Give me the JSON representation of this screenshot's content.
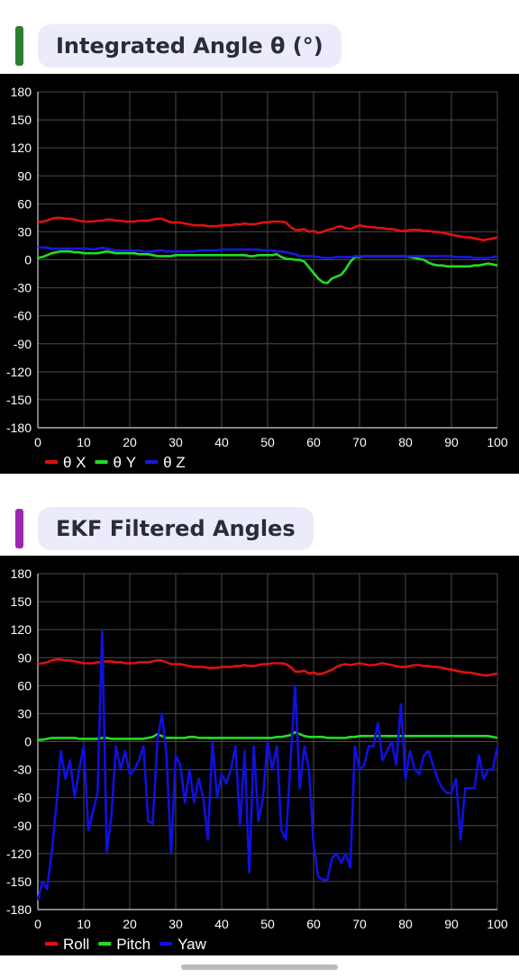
{
  "sections": [
    {
      "title": "Integrated Angle θ (°)",
      "accent_color": "#2e7d32"
    },
    {
      "title": "EKF Filtered Angles",
      "accent_color": "#9c27b0"
    }
  ],
  "chart_data": [
    {
      "type": "line",
      "title": "Integrated Angle θ (°)",
      "xlim": [
        0,
        100
      ],
      "ylim": [
        -180,
        180
      ],
      "xticks": [
        0,
        10,
        20,
        30,
        40,
        50,
        60,
        70,
        80,
        90,
        100
      ],
      "yticks": [
        180,
        150,
        120,
        90,
        60,
        30,
        0,
        -30,
        -60,
        -90,
        -120,
        -150,
        -180
      ],
      "grid": true,
      "legend_position": "bottom-left",
      "x": [
        0,
        1,
        2,
        3,
        4,
        5,
        6,
        7,
        8,
        9,
        10,
        11,
        12,
        13,
        14,
        15,
        16,
        17,
        18,
        19,
        20,
        21,
        22,
        23,
        24,
        25,
        26,
        27,
        28,
        29,
        30,
        31,
        32,
        33,
        34,
        35,
        36,
        37,
        38,
        39,
        40,
        41,
        42,
        43,
        44,
        45,
        46,
        47,
        48,
        49,
        50,
        51,
        52,
        53,
        54,
        55,
        56,
        57,
        58,
        59,
        60,
        61,
        62,
        63,
        64,
        65,
        66,
        67,
        68,
        69,
        70,
        71,
        72,
        73,
        74,
        75,
        76,
        77,
        78,
        79,
        80,
        81,
        82,
        83,
        84,
        85,
        86,
        87,
        88,
        89,
        90,
        91,
        92,
        93,
        94,
        95,
        96,
        97,
        98,
        99,
        100
      ],
      "series": [
        {
          "name": "θ X",
          "color": "#e01010",
          "values": [
            40,
            41,
            42,
            44,
            45,
            45,
            44,
            44,
            43,
            42,
            41,
            41,
            41,
            42,
            42,
            43,
            43,
            42,
            42,
            41,
            41,
            41,
            42,
            42,
            42,
            43,
            44,
            44,
            42,
            40,
            40,
            40,
            39,
            38,
            37,
            37,
            37,
            36,
            36,
            36,
            37,
            37,
            37,
            38,
            38,
            39,
            38,
            38,
            39,
            40,
            40,
            41,
            41,
            41,
            40,
            35,
            32,
            32,
            33,
            30,
            31,
            29,
            30,
            32,
            33,
            35,
            36,
            34,
            33,
            35,
            37,
            36,
            35,
            35,
            34,
            34,
            33,
            33,
            32,
            31,
            31,
            32,
            32,
            32,
            31,
            31,
            30,
            30,
            29,
            28,
            27,
            26,
            25,
            24,
            24,
            23,
            22,
            21,
            22,
            23,
            24
          ]
        },
        {
          "name": "θ Y",
          "color": "#22dd22",
          "values": [
            2,
            3,
            5,
            7,
            8,
            9,
            9,
            9,
            8,
            8,
            7,
            7,
            7,
            7,
            8,
            9,
            8,
            7,
            7,
            7,
            7,
            7,
            6,
            6,
            6,
            5,
            4,
            4,
            4,
            4,
            5,
            5,
            5,
            5,
            5,
            5,
            5,
            5,
            5,
            5,
            5,
            5,
            5,
            5,
            5,
            5,
            4,
            4,
            5,
            5,
            5,
            5,
            6,
            3,
            1,
            1,
            0,
            0,
            -2,
            -8,
            -14,
            -20,
            -24,
            -25,
            -20,
            -18,
            -16,
            -10,
            -2,
            3,
            3,
            4,
            4,
            4,
            4,
            4,
            4,
            4,
            4,
            4,
            4,
            3,
            2,
            1,
            0,
            -3,
            -5,
            -6,
            -6,
            -7,
            -7,
            -7,
            -7,
            -7,
            -7,
            -6,
            -6,
            -5,
            -4,
            -5,
            -6
          ]
        },
        {
          "name": "θ Z",
          "color": "#1818e0",
          "values": [
            14,
            13,
            13,
            12,
            12,
            12,
            12,
            12,
            12,
            12,
            12,
            12,
            11,
            12,
            13,
            12,
            11,
            10,
            10,
            10,
            10,
            10,
            10,
            9,
            9,
            9,
            10,
            10,
            9,
            9,
            9,
            9,
            9,
            9,
            9,
            10,
            10,
            10,
            10,
            10,
            11,
            11,
            11,
            11,
            11,
            11,
            11,
            11,
            11,
            10,
            10,
            10,
            9,
            9,
            8,
            7,
            6,
            4,
            4,
            4,
            4,
            3,
            2,
            2,
            2,
            3,
            3,
            3,
            3,
            4,
            4,
            4,
            4,
            4,
            4,
            4,
            4,
            4,
            4,
            4,
            4,
            4,
            4,
            4,
            4,
            4,
            4,
            4,
            4,
            4,
            4,
            3,
            3,
            3,
            3,
            2,
            2,
            2,
            2,
            3,
            4
          ]
        }
      ]
    },
    {
      "type": "line",
      "title": "EKF Filtered Angles",
      "xlim": [
        0,
        100
      ],
      "ylim": [
        -180,
        180
      ],
      "xticks": [
        0,
        10,
        20,
        30,
        40,
        50,
        60,
        70,
        80,
        90,
        100
      ],
      "yticks": [
        180,
        150,
        120,
        90,
        60,
        30,
        0,
        -30,
        -60,
        -90,
        -120,
        -150,
        -180
      ],
      "grid": true,
      "legend_position": "bottom-left",
      "x": [
        0,
        1,
        2,
        3,
        4,
        5,
        6,
        7,
        8,
        9,
        10,
        11,
        12,
        13,
        14,
        15,
        16,
        17,
        18,
        19,
        20,
        21,
        22,
        23,
        24,
        25,
        26,
        27,
        28,
        29,
        30,
        31,
        32,
        33,
        34,
        35,
        36,
        37,
        38,
        39,
        40,
        41,
        42,
        43,
        44,
        45,
        46,
        47,
        48,
        49,
        50,
        51,
        52,
        53,
        54,
        55,
        56,
        57,
        58,
        59,
        60,
        61,
        62,
        63,
        64,
        65,
        66,
        67,
        68,
        69,
        70,
        71,
        72,
        73,
        74,
        75,
        76,
        77,
        78,
        79,
        80,
        81,
        82,
        83,
        84,
        85,
        86,
        87,
        88,
        89,
        90,
        91,
        92,
        93,
        94,
        95,
        96,
        97,
        98,
        99,
        100
      ],
      "series": [
        {
          "name": "Roll",
          "color": "#e01010",
          "values": [
            83,
            84,
            85,
            87,
            88,
            88,
            87,
            87,
            86,
            85,
            84,
            84,
            84,
            85,
            85,
            86,
            86,
            85,
            85,
            84,
            84,
            84,
            85,
            85,
            85,
            86,
            87,
            87,
            85,
            83,
            83,
            83,
            82,
            81,
            80,
            80,
            80,
            79,
            79,
            79,
            80,
            80,
            80,
            81,
            81,
            82,
            81,
            81,
            82,
            83,
            83,
            84,
            84,
            84,
            83,
            80,
            75,
            75,
            76,
            73,
            74,
            72,
            73,
            75,
            77,
            80,
            82,
            83,
            82,
            83,
            84,
            83,
            82,
            82,
            83,
            84,
            83,
            82,
            81,
            80,
            80,
            81,
            82,
            82,
            81,
            81,
            80,
            80,
            79,
            78,
            77,
            76,
            75,
            74,
            74,
            73,
            72,
            71,
            71,
            72,
            73
          ]
        },
        {
          "name": "Pitch",
          "color": "#22dd22",
          "values": [
            2,
            2,
            3,
            4,
            4,
            4,
            4,
            4,
            4,
            3,
            3,
            3,
            3,
            3,
            4,
            4,
            3,
            3,
            3,
            3,
            3,
            3,
            3,
            3,
            4,
            5,
            8,
            6,
            4,
            4,
            4,
            4,
            4,
            5,
            5,
            4,
            4,
            4,
            4,
            4,
            4,
            4,
            4,
            4,
            4,
            4,
            4,
            4,
            4,
            4,
            4,
            4,
            5,
            5,
            6,
            7,
            10,
            8,
            6,
            5,
            5,
            5,
            5,
            4,
            4,
            4,
            4,
            4,
            5,
            5,
            6,
            6,
            6,
            6,
            6,
            6,
            6,
            6,
            6,
            6,
            6,
            6,
            6,
            6,
            6,
            6,
            6,
            6,
            6,
            6,
            6,
            6,
            6,
            6,
            6,
            6,
            6,
            6,
            6,
            5,
            4
          ]
        },
        {
          "name": "Yaw",
          "color": "#1010e0",
          "values": [
            -170,
            -150,
            -158,
            -120,
            -70,
            -10,
            -40,
            -20,
            -60,
            -30,
            -5,
            -95,
            -75,
            -55,
            118,
            -118,
            -80,
            -5,
            -30,
            -10,
            -35,
            -30,
            -20,
            -5,
            -85,
            -88,
            0,
            30,
            -15,
            -120,
            -15,
            -25,
            -65,
            -30,
            -65,
            -40,
            -60,
            -105,
            0,
            -60,
            -35,
            -45,
            -30,
            -5,
            -90,
            -10,
            -140,
            -5,
            -85,
            -60,
            0,
            -30,
            -5,
            -95,
            -105,
            -20,
            60,
            -50,
            -5,
            -30,
            -110,
            -145,
            -148,
            -148,
            -125,
            -120,
            -130,
            -120,
            -135,
            -5,
            -30,
            -25,
            -5,
            -5,
            20,
            -20,
            -10,
            0,
            -25,
            40,
            -40,
            -10,
            -30,
            -35,
            -15,
            -10,
            -25,
            -40,
            -50,
            -55,
            -55,
            -40,
            -105,
            -50,
            -50,
            -50,
            -15,
            -40,
            -30,
            -30,
            -5
          ]
        }
      ]
    }
  ]
}
